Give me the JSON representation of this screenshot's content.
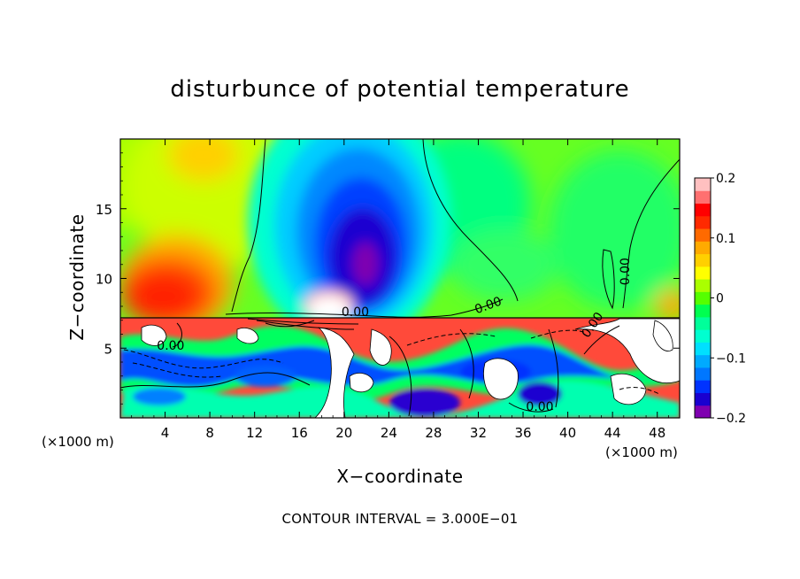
{
  "chart_data": {
    "type": "heatmap",
    "title": "disturbunce of potential temperature",
    "xlabel": "X−coordinate",
    "ylabel": "Z−coordinate",
    "x_unit_label_left": "(×1000 m)",
    "x_unit_label_right": "(×1000 m)",
    "xlim": [
      0,
      50
    ],
    "ylim": [
      0,
      20
    ],
    "x_ticks": [
      "4",
      "8",
      "12",
      "16",
      "20",
      "24",
      "28",
      "32",
      "36",
      "40",
      "44",
      "48"
    ],
    "y_ticks": [
      "5",
      "10",
      "15"
    ],
    "colorbar": {
      "range": [
        -0.2,
        0.2
      ],
      "tick_labels": [
        "0.2",
        "0.1",
        "0",
        "−0.1",
        "−0.2"
      ],
      "tick_values": [
        0.2,
        0.1,
        0,
        -0.1,
        -0.2
      ],
      "colors": [
        "#7f00b0",
        "#1a00d0",
        "#0033ff",
        "#0077ff",
        "#00aaff",
        "#00e0ff",
        "#00ffd0",
        "#00ff9a",
        "#00ff50",
        "#55ff00",
        "#aaff00",
        "#ffff00",
        "#ffd000",
        "#ffaa00",
        "#ff6a00",
        "#ff2a00",
        "#ff0000",
        "#ff7070",
        "#ffc0c0"
      ]
    },
    "contour_labels": [
      {
        "text": "0.00",
        "x": 4.5,
        "y": 4.9
      },
      {
        "text": "0.00",
        "x": 21,
        "y": 7.3
      },
      {
        "text": "0.00",
        "x": 33,
        "y": 7.8
      },
      {
        "text": "0.00",
        "x": 45.5,
        "y": 10.5
      },
      {
        "text": "0.00",
        "x": 42.5,
        "y": 6.5
      },
      {
        "text": "0.00",
        "x": 37.5,
        "y": 0.5
      }
    ],
    "features": [
      {
        "name": "warm anomaly",
        "x": 4.5,
        "z": 10,
        "value": 0.18
      },
      {
        "name": "warm anomaly",
        "x": 2,
        "z": 19,
        "value": 0.06
      },
      {
        "name": "cold anomaly",
        "x": 21,
        "z": 12,
        "value": -0.2
      },
      {
        "name": "warm cap",
        "x": 18.5,
        "z": 8.5,
        "value": 0.2
      }
    ],
    "contour_interval_text": "CONTOUR INTERVAL = 3.000E−01"
  }
}
